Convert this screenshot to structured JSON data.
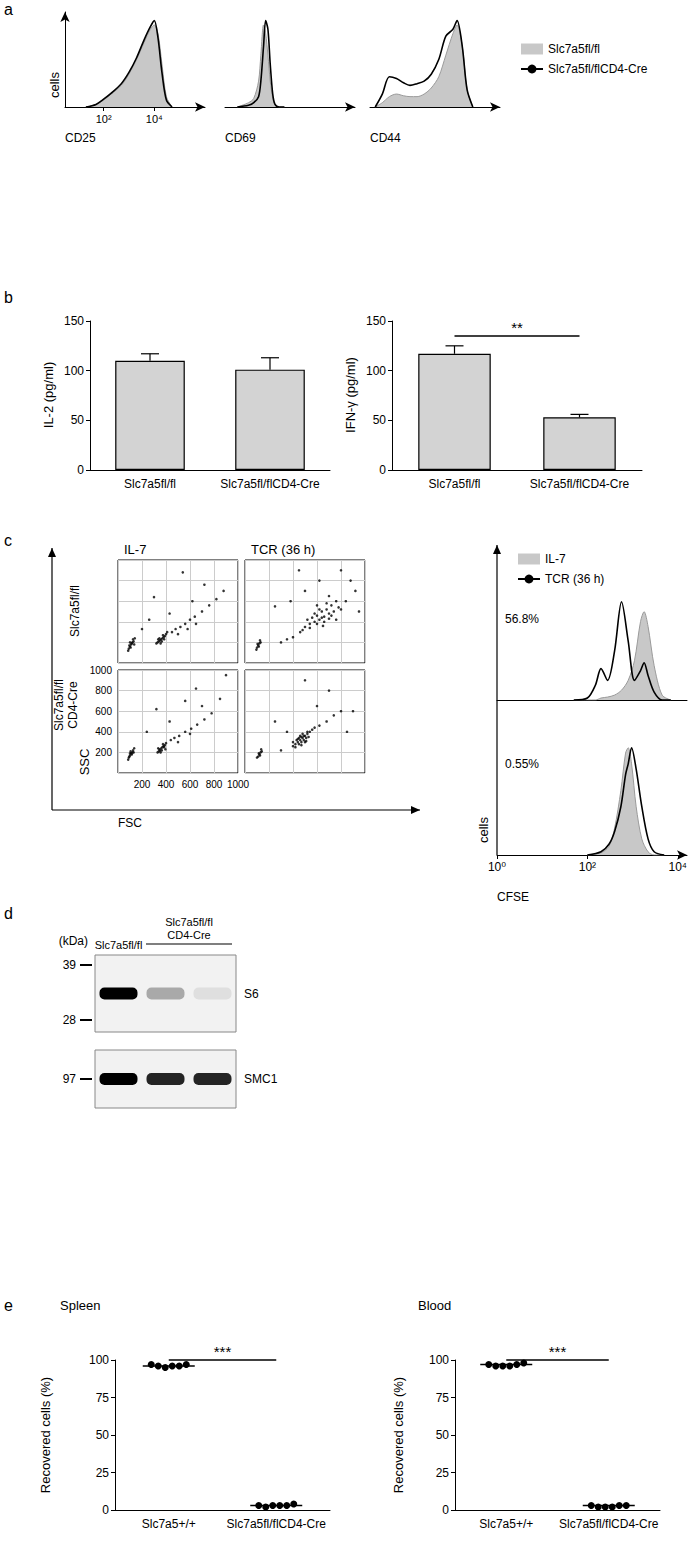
{
  "chart_data": [
    {
      "panel_label": "a",
      "type": "line",
      "xlabel": "CD25",
      "ylabel": "cells",
      "log": "x",
      "xlim": [
        3,
        1000000
      ],
      "xticks": [
        {
          "value": 100,
          "label": "10²"
        },
        {
          "value": 10000,
          "label": "10⁴"
        }
      ],
      "ylim": [
        0,
        110
      ],
      "tick_labels": "x",
      "legend": "right",
      "x": [
        20,
        50,
        100,
        200,
        500,
        1000,
        2000,
        4000,
        7000,
        10000,
        14000,
        20000,
        30000,
        50000
      ],
      "series": [
        {
          "name": "Slc7a5fl/fl",
          "type": "area",
          "color": "#c8c8c8",
          "values": [
            0,
            3,
            8,
            15,
            25,
            38,
            55,
            75,
            90,
            95,
            85,
            50,
            12,
            0
          ]
        },
        {
          "name": "Slc7a5fl/flCD4-Cre",
          "color": "#000000",
          "values": [
            0,
            3,
            9,
            16,
            27,
            40,
            57,
            78,
            93,
            100,
            80,
            40,
            8,
            0
          ]
        }
      ]
    },
    {
      "type": "line",
      "xlabel": "CD69",
      "log": "x",
      "xlim": [
        3,
        1000000
      ],
      "ylim": [
        0,
        110
      ],
      "tick_labels": false,
      "x": [
        10,
        30,
        50,
        80,
        100,
        130,
        160,
        200,
        250,
        320,
        400,
        600,
        1000
      ],
      "series": [
        {
          "name": "Slc7a5fl/fl",
          "type": "area",
          "color": "#c8c8c8",
          "values": [
            0,
            5,
            10,
            30,
            60,
            95,
            85,
            60,
            30,
            10,
            3,
            0,
            0
          ]
        },
        {
          "name": "Slc7a5fl/flCD4-Cre",
          "color": "#000000",
          "values": [
            0,
            2,
            5,
            12,
            30,
            70,
            100,
            90,
            50,
            15,
            3,
            0,
            0
          ]
        }
      ]
    },
    {
      "type": "line",
      "xlabel": "CD44",
      "log": "x",
      "xlim": [
        3,
        1000000
      ],
      "ylim": [
        0,
        110
      ],
      "tick_labels": false,
      "x": [
        5,
        10,
        20,
        40,
        80,
        150,
        300,
        600,
        1200,
        2500,
        5000,
        10000,
        15000,
        25000,
        40000,
        70000
      ],
      "series": [
        {
          "name": "Slc7a5fl/fl",
          "type": "area",
          "color": "#c8c8c8",
          "values": [
            0,
            5,
            12,
            15,
            13,
            12,
            12,
            15,
            22,
            35,
            60,
            85,
            95,
            70,
            20,
            0
          ]
        },
        {
          "name": "Slc7a5fl/flCD4-Cre",
          "color": "#000000",
          "values": [
            0,
            15,
            35,
            33,
            28,
            25,
            27,
            30,
            38,
            55,
            82,
            90,
            100,
            70,
            20,
            0
          ]
        }
      ]
    },
    {
      "panel_label": "b",
      "type": "bar",
      "ylabel": "IL-2 (pg/ml)",
      "categories": [
        "Slc7a5fl/fl",
        "Slc7a5fl/flCD4-Cre"
      ],
      "values": [
        110,
        101
      ],
      "errors": [
        7,
        12
      ],
      "color": "#d3d3d3",
      "ylim": [
        0,
        150
      ],
      "yticks": [
        0,
        50,
        100,
        150
      ]
    },
    {
      "type": "bar",
      "ylabel": "IFN-γ (pg/ml)",
      "categories": [
        "Slc7a5fl/fl",
        "Slc7a5fl/flCD4-Cre"
      ],
      "values": [
        117,
        53
      ],
      "errors": [
        8,
        3
      ],
      "color": "#d3d3d3",
      "ylim": [
        0,
        150
      ],
      "yticks": [
        0,
        50,
        100,
        150
      ],
      "significance": {
        "label": "**",
        "y": 135
      }
    },
    {
      "panel_label": "c",
      "type": "scatter",
      "title": "IL-7",
      "row_label": "Slc7a5fl/fl",
      "color": "#000000",
      "xlim": [
        0,
        1000
      ],
      "ylim": [
        0,
        1000
      ],
      "xticks": [
        200,
        400,
        600,
        800,
        1000
      ],
      "yticks": [
        200,
        400,
        600,
        800,
        1000
      ],
      "grid": true,
      "tick_labels": false,
      "x": [
        90,
        100,
        110,
        120,
        130,
        95,
        105,
        115,
        125,
        100,
        135,
        85,
        140,
        320,
        330,
        340,
        350,
        360,
        370,
        380,
        390,
        400,
        345,
        365,
        375,
        355,
        385,
        410,
        335,
        450,
        480,
        520,
        560,
        600,
        640,
        700,
        760,
        820,
        500,
        580,
        650,
        430,
        300,
        540,
        720,
        880,
        260,
        200,
        620
      ],
      "values": [
        140,
        160,
        180,
        200,
        210,
        170,
        150,
        190,
        230,
        200,
        180,
        120,
        240,
        190,
        200,
        210,
        220,
        230,
        240,
        250,
        260,
        280,
        240,
        210,
        270,
        190,
        230,
        300,
        230,
        300,
        330,
        350,
        380,
        420,
        450,
        500,
        560,
        620,
        280,
        330,
        380,
        480,
        640,
        880,
        760,
        700,
        420,
        330,
        600
      ]
    },
    {
      "type": "scatter",
      "title": "TCR (36 h)",
      "color": "#000000",
      "xlim": [
        0,
        1000
      ],
      "ylim": [
        0,
        1000
      ],
      "xticks": [
        200,
        400,
        600,
        800,
        1000
      ],
      "yticks": [
        200,
        400,
        600,
        800,
        1000
      ],
      "grid": true,
      "tick_labels": false,
      "x": [
        100,
        110,
        120,
        95,
        130,
        105,
        115,
        125,
        500,
        540,
        580,
        620,
        660,
        700,
        740,
        780,
        600,
        640,
        680,
        720,
        560,
        520,
        600,
        660,
        700,
        620,
        680,
        760,
        580,
        640,
        720,
        800,
        540,
        480,
        460,
        840,
        650,
        700,
        600,
        760,
        400,
        350,
        300,
        880,
        920,
        500,
        380,
        800,
        950,
        620,
        250,
        450
      ],
      "values": [
        150,
        170,
        190,
        130,
        200,
        185,
        160,
        220,
        350,
        380,
        400,
        420,
        450,
        480,
        500,
        540,
        460,
        500,
        520,
        560,
        440,
        420,
        380,
        400,
        430,
        520,
        580,
        600,
        480,
        440,
        460,
        520,
        340,
        320,
        300,
        600,
        360,
        650,
        560,
        420,
        250,
        230,
        200,
        800,
        700,
        700,
        600,
        900,
        500,
        800,
        550,
        900
      ]
    },
    {
      "type": "scatter",
      "row_label": "Slc7a5fl/fl\nCD4-Cre",
      "xlabel": "FSC",
      "ylabel": "SSC",
      "color": "#000000",
      "xlim": [
        0,
        1000
      ],
      "ylim": [
        0,
        1000
      ],
      "xticks": [
        200,
        400,
        600,
        800,
        1000
      ],
      "yticks": [
        200,
        400,
        600,
        800,
        1000
      ],
      "grid": true,
      "x": [
        90,
        100,
        110,
        120,
        95,
        105,
        115,
        125,
        85,
        130,
        100,
        135,
        330,
        340,
        350,
        360,
        370,
        380,
        390,
        345,
        365,
        375,
        355,
        385,
        400,
        335,
        395,
        440,
        470,
        510,
        560,
        610,
        660,
        720,
        780,
        500,
        600,
        430,
        320,
        560,
        700,
        850,
        240,
        900,
        650
      ],
      "values": [
        150,
        170,
        190,
        200,
        160,
        210,
        180,
        220,
        130,
        200,
        190,
        240,
        200,
        210,
        220,
        240,
        250,
        260,
        270,
        230,
        220,
        280,
        200,
        250,
        290,
        240,
        230,
        320,
        340,
        360,
        400,
        430,
        470,
        520,
        580,
        300,
        380,
        500,
        620,
        700,
        650,
        720,
        400,
        950,
        820
      ]
    },
    {
      "type": "scatter",
      "color": "#000000",
      "xlim": [
        0,
        1000
      ],
      "ylim": [
        0,
        1000
      ],
      "xticks": [
        200,
        400,
        600,
        800,
        1000
      ],
      "yticks": [
        200,
        400,
        600,
        800,
        1000
      ],
      "grid": true,
      "tick_labels": false,
      "x": [
        110,
        120,
        130,
        100,
        140,
        115,
        125,
        135,
        400,
        420,
        440,
        460,
        480,
        500,
        520,
        450,
        470,
        490,
        510,
        430,
        460,
        500,
        540,
        480,
        420,
        560,
        530,
        450,
        470,
        490,
        510,
        440,
        580,
        400,
        470,
        520,
        620,
        680,
        740,
        800,
        300,
        350,
        600,
        700,
        900,
        250,
        500,
        850
      ],
      "values": [
        160,
        180,
        200,
        150,
        210,
        190,
        170,
        230,
        260,
        280,
        300,
        320,
        340,
        360,
        380,
        340,
        300,
        320,
        340,
        320,
        360,
        300,
        400,
        380,
        250,
        420,
        350,
        280,
        350,
        360,
        310,
        330,
        440,
        300,
        270,
        400,
        460,
        500,
        560,
        600,
        220,
        400,
        650,
        800,
        600,
        500,
        900,
        400
      ]
    },
    {
      "type": "line",
      "annotation": "56.8%",
      "legend": "top-right",
      "log": "x",
      "xlim": [
        1,
        16000
      ],
      "ylim": [
        0,
        110
      ],
      "tick_labels": false,
      "x": [
        50,
        100,
        150,
        200,
        280,
        400,
        570,
        800,
        1100,
        1500,
        1800,
        2200,
        3000,
        4500,
        7000
      ],
      "series": [
        {
          "name": "IL-7",
          "type": "area",
          "color": "#c8c8c8",
          "values": [
            0,
            0,
            0,
            2,
            3,
            5,
            10,
            20,
            40,
            80,
            90,
            75,
            35,
            5,
            0
          ]
        },
        {
          "name": "TCR (36 h)",
          "color": "#000000",
          "values": [
            0,
            2,
            15,
            32,
            20,
            50,
            100,
            60,
            20,
            30,
            38,
            25,
            8,
            0,
            0
          ]
        }
      ]
    },
    {
      "type": "line",
      "annotation": "0.55%",
      "xlabel": "CFSE",
      "ylabel": "cells",
      "log": "x",
      "xlim": [
        1,
        16000
      ],
      "xticks": [
        {
          "value": 1,
          "label": "10⁰"
        },
        {
          "value": 100,
          "label": "10²"
        },
        {
          "value": 10000,
          "label": "10⁴"
        }
      ],
      "ylim": [
        0,
        110
      ],
      "tick_labels": "x",
      "x": [
        100,
        200,
        300,
        400,
        550,
        700,
        800,
        950,
        1200,
        1600,
        2200,
        3000,
        5000
      ],
      "series": [
        {
          "name": "IL-7",
          "type": "area",
          "color": "#c8c8c8",
          "values": [
            0,
            2,
            8,
            25,
            60,
            95,
            100,
            85,
            45,
            15,
            3,
            0,
            0
          ]
        },
        {
          "name": "TCR (36 h)",
          "color": "#000000",
          "values": [
            0,
            3,
            10,
            22,
            45,
            75,
            85,
            100,
            80,
            45,
            15,
            3,
            0
          ]
        }
      ]
    },
    {
      "panel_label": "e",
      "type": "strip",
      "title": "Spleen",
      "ylabel": "Recovered cells (%)",
      "categories": [
        "Slc7a5+/+",
        "Slc7a5fl/flCD4-Cre"
      ],
      "values": [
        [
          97,
          96,
          95,
          96,
          96,
          97
        ],
        [
          3,
          2,
          3,
          3,
          3,
          4
        ]
      ],
      "means": [
        96,
        3
      ],
      "color": "#000000",
      "ylim": [
        0,
        100
      ],
      "yticks": [
        0,
        25,
        50,
        75,
        100
      ],
      "significance": {
        "label": "***",
        "y": 100
      }
    },
    {
      "type": "strip",
      "title": "Blood",
      "ylabel": "Recovered cells (%)",
      "categories": [
        "Slc7a5+/+",
        "Slc7a5fl/flCD4-Cre"
      ],
      "values": [
        [
          97,
          96,
          96,
          96,
          97,
          98
        ],
        [
          3,
          2,
          2,
          2,
          3,
          3
        ]
      ],
      "means": [
        97,
        3
      ],
      "color": "#000000",
      "ylim": [
        0,
        100
      ],
      "yticks": [
        0,
        25,
        50,
        75,
        100
      ],
      "significance": {
        "label": "***",
        "y": 100
      }
    }
  ],
  "blot": {
    "panel_label": "d",
    "unit": "(kDa)",
    "lanes": [
      {
        "label": "Slc7a5fl/fl",
        "count": 1
      },
      {
        "label": "Slc7a5fl/fl\nCD4-Cre",
        "count": 2
      }
    ],
    "rows": [
      {
        "label": "S6",
        "markers": [
          39,
          28
        ],
        "intensity": [
          1,
          0.3,
          0.08
        ]
      },
      {
        "label": "SMC1",
        "markers": [
          97
        ],
        "intensity": [
          1,
          0.85,
          0.85
        ]
      }
    ]
  }
}
